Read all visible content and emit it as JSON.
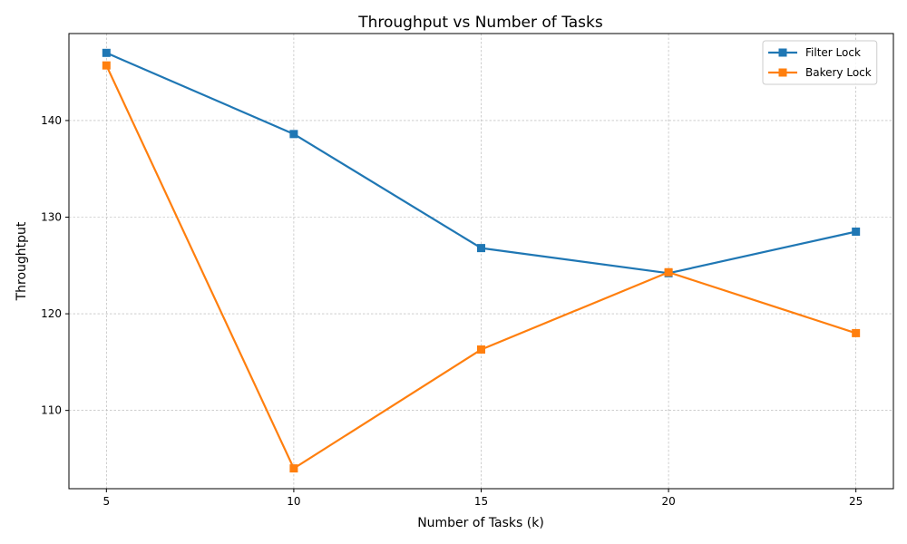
{
  "chart_data": {
    "type": "line",
    "title": "Throughput vs Number of Tasks",
    "xlabel": "Number of Tasks (k)",
    "ylabel": "Throughtput",
    "x": [
      5,
      10,
      15,
      20,
      25
    ],
    "xlim": [
      4,
      26
    ],
    "ylim": [
      101.9,
      149.0
    ],
    "xticks": [
      5,
      10,
      15,
      20,
      25
    ],
    "yticks": [
      110,
      120,
      130,
      140
    ],
    "grid": true,
    "legend_position": "top-right",
    "marker": "square",
    "series": [
      {
        "name": "Filter Lock",
        "color": "#1f77b4",
        "values": [
          147.0,
          138.6,
          126.8,
          124.2,
          128.5
        ]
      },
      {
        "name": "Bakery Lock",
        "color": "#ff7f0e",
        "values": [
          145.7,
          104.0,
          116.3,
          124.3,
          118.0
        ]
      }
    ]
  }
}
